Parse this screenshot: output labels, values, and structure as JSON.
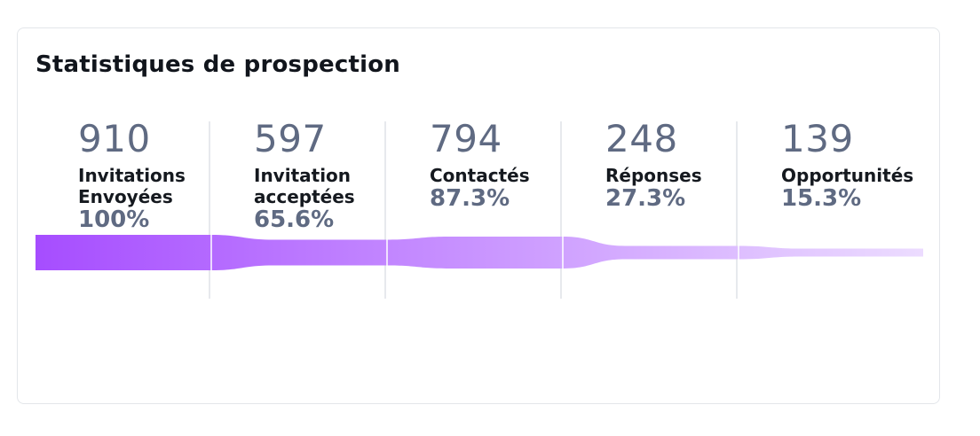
{
  "title": "Statistiques de prospection",
  "colors": {
    "start": "#a64dff",
    "end": "#ecdcff",
    "value": "#5f6a82",
    "label": "#15191f",
    "divider": "#ffffff"
  },
  "chart_data": {
    "type": "funnel",
    "title": "Statistiques de prospection",
    "stages": [
      {
        "value": 910,
        "value_text": "910",
        "label": "Invitations Envoyées",
        "pct": "100%"
      },
      {
        "value": 597,
        "value_text": "597",
        "label": "Invitation acceptées",
        "pct": "65.6%"
      },
      {
        "value": 794,
        "value_text": "794",
        "label": "Contactés",
        "pct": "87.3%"
      },
      {
        "value": 248,
        "value_text": "248",
        "label": "Réponses",
        "pct": "27.3%"
      },
      {
        "value": 139,
        "value_text": "139",
        "label": "Opportunités",
        "pct": "15.3%"
      }
    ]
  }
}
